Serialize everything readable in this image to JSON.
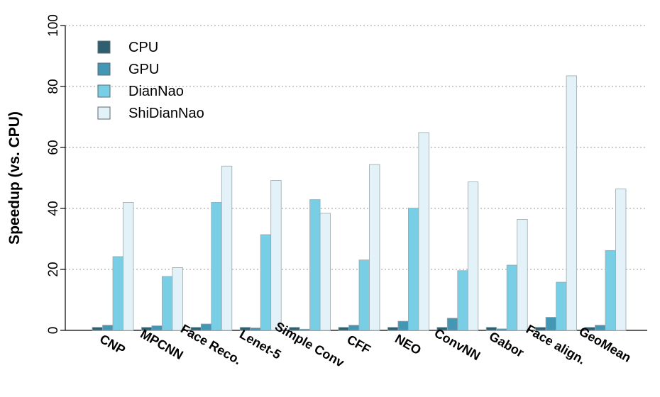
{
  "chart_data": {
    "type": "bar",
    "title": "",
    "xlabel": "",
    "ylabel": "Speedup (vs. CPU)",
    "ylim": [
      0,
      100
    ],
    "yticks": [
      0,
      20,
      40,
      60,
      80,
      100
    ],
    "grid": "horizontal dotted",
    "legend_position": "top-left",
    "categories": [
      "CNP",
      "MPCNN",
      "Face Reco.",
      "Lenet-5",
      "Simple Conv",
      "CFF",
      "NEO",
      "ConvNN",
      "Gabor",
      "Face align.",
      "GeoMean"
    ],
    "series": [
      {
        "name": "CPU",
        "color": "#2e5f70",
        "values": [
          1,
          1,
          1,
          1,
          1,
          1,
          1,
          1,
          1,
          1,
          1
        ]
      },
      {
        "name": "GPU",
        "color": "#4496b5",
        "values": [
          1.7,
          1.5,
          2.1,
          0.8,
          0.4,
          1.7,
          3.0,
          4.0,
          0.5,
          4.3,
          1.7
        ]
      },
      {
        "name": "DianNao",
        "color": "#78cfe5",
        "values": [
          24.2,
          17.7,
          42.0,
          31.4,
          42.9,
          23.1,
          40.1,
          19.6,
          21.4,
          15.8,
          26.2
        ]
      },
      {
        "name": "ShiDianNao",
        "color": "#e3f2f8",
        "values": [
          42.0,
          20.6,
          53.9,
          49.2,
          38.4,
          54.4,
          64.9,
          48.7,
          36.4,
          83.5,
          46.4
        ]
      }
    ]
  }
}
